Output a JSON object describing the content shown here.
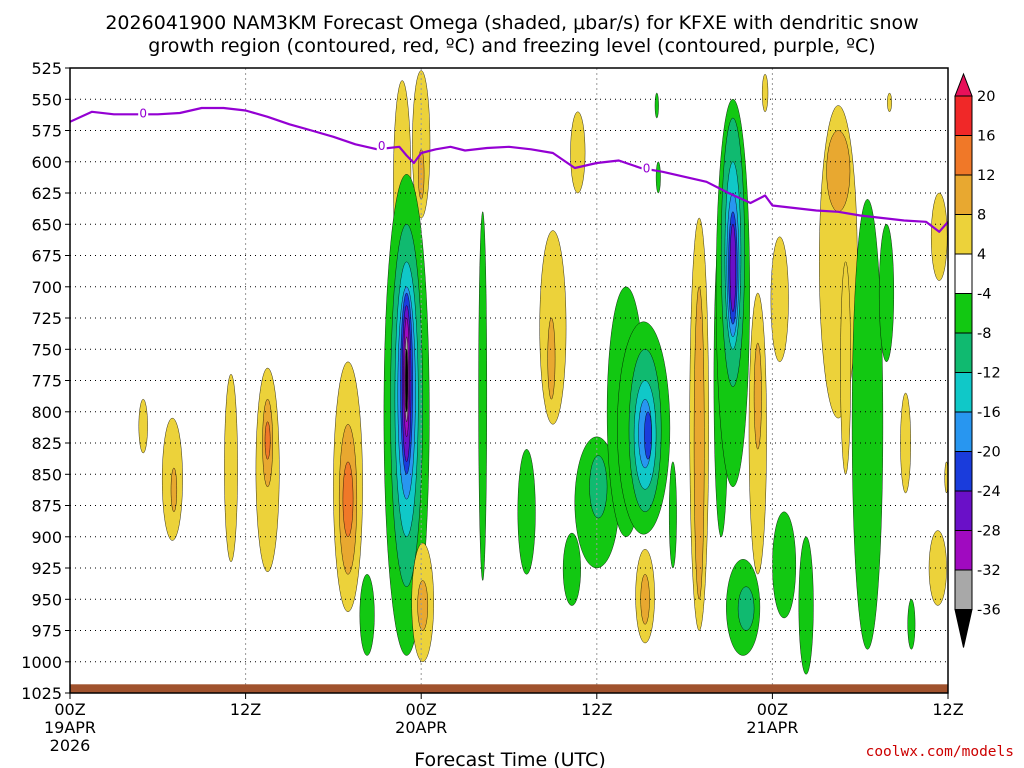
{
  "chart_data": {
    "type": "heatmap",
    "title_line1": "2026041900 NAM3KM Forecast Omega (shaded, μbar/s) for KFXE with dendritic snow",
    "title_line2": "growth region (contoured, red, ºC) and freezing level (contoured, purple, ºC)",
    "xlabel": "Forecast Time (UTC)",
    "credit": "coolwx.com/models",
    "y_ticks": [
      "525",
      "550",
      "575",
      "600",
      "625",
      "650",
      "675",
      "700",
      "725",
      "750",
      "775",
      "800",
      "825",
      "850",
      "875",
      "900",
      "925",
      "950",
      "975",
      "1000",
      "1025"
    ],
    "y_levels": [
      525,
      550,
      575,
      600,
      625,
      650,
      675,
      700,
      725,
      750,
      775,
      800,
      825,
      850,
      875,
      900,
      925,
      950,
      975,
      1000,
      1025
    ],
    "ylim": [
      1025,
      525
    ],
    "xlim_hours": [
      0,
      60
    ],
    "x_ticks": [
      {
        "hour": 0,
        "line1": "00Z",
        "line2": "19APR",
        "line3": "2026"
      },
      {
        "hour": 12,
        "line1": "12Z",
        "line2": "",
        "line3": ""
      },
      {
        "hour": 24,
        "line1": "00Z",
        "line2": "20APR",
        "line3": ""
      },
      {
        "hour": 36,
        "line1": "12Z",
        "line2": "",
        "line3": ""
      },
      {
        "hour": 48,
        "line1": "00Z",
        "line2": "21APR",
        "line3": ""
      },
      {
        "hour": 60,
        "line1": "12Z",
        "line2": "",
        "line3": ""
      }
    ],
    "colorbar_labels": [
      "20",
      "16",
      "12",
      "8",
      "4",
      "-4",
      "-8",
      "-12",
      "-16",
      "-20",
      "-24",
      "-28",
      "-32",
      "-36"
    ],
    "colorbar_colors": [
      "#e8105a",
      "#f02828",
      "#f07828",
      "#e8a830",
      "#ecd23a",
      "#ffffff",
      "#12c812",
      "#10ba70",
      "#10c8c8",
      "#2896f0",
      "#1a3cdc",
      "#6a10c8",
      "#a00ac0",
      "#a8a8a8",
      "#000000"
    ],
    "freezing_level": {
      "label": "0",
      "hours": [
        0,
        1.5,
        3,
        4.5,
        6,
        7.5,
        9,
        10.5,
        12,
        13.5,
        15,
        16.5,
        18,
        19.5,
        21,
        22.5,
        23,
        23.5,
        24,
        25,
        26,
        27,
        28.5,
        30,
        31.5,
        33,
        34.5,
        36,
        37.5,
        39,
        40.5,
        42,
        43.5,
        45,
        46.5,
        47.5,
        48,
        49.5,
        51,
        52.5,
        54,
        55.5,
        57,
        58.5,
        59.4,
        60
      ],
      "hpa": [
        568,
        560,
        562,
        562,
        562,
        561,
        557,
        557,
        559,
        564,
        570,
        575,
        580,
        586,
        590,
        588,
        595,
        601,
        593,
        590,
        588,
        591,
        589,
        588,
        590,
        593,
        605,
        601,
        599,
        605,
        608,
        612,
        616,
        625,
        633,
        627,
        635,
        637,
        639,
        640,
        643,
        645,
        647,
        648,
        656,
        648
      ]
    },
    "zero_labels": [
      {
        "hour": 5,
        "hpa": 561
      },
      {
        "hour": 21.3,
        "hpa": 587
      },
      {
        "hour": 39.4,
        "hpa": 605
      }
    ],
    "ground_level_hpa": 1018,
    "omega_features": [
      {
        "h": 5,
        "p1": 790,
        "p2": 833,
        "w": 0.3,
        "v": 6
      },
      {
        "h": 7,
        "p1": 805,
        "p2": 903,
        "w": 0.7,
        "v": 6
      },
      {
        "h": 7.1,
        "p1": 845,
        "p2": 880,
        "w": 0.2,
        "v": 8
      },
      {
        "h": 11,
        "p1": 770,
        "p2": 920,
        "w": 0.45,
        "v": 6
      },
      {
        "h": 13.5,
        "p1": 765,
        "p2": 928,
        "w": 0.8,
        "v": 6
      },
      {
        "h": 13.5,
        "p1": 790,
        "p2": 860,
        "w": 0.35,
        "v": 10
      },
      {
        "h": 13.5,
        "p1": 808,
        "p2": 838,
        "w": 0.18,
        "v": 13
      },
      {
        "h": 19,
        "p1": 760,
        "p2": 960,
        "w": 1.0,
        "v": 6
      },
      {
        "h": 19,
        "p1": 810,
        "p2": 930,
        "w": 0.6,
        "v": 10
      },
      {
        "h": 19,
        "p1": 840,
        "p2": 900,
        "w": 0.35,
        "v": 13
      },
      {
        "h": 22.7,
        "p1": 535,
        "p2": 700,
        "w": 0.6,
        "v": 6
      },
      {
        "h": 24,
        "p1": 527,
        "p2": 645,
        "w": 0.6,
        "v": 6
      },
      {
        "h": 24,
        "p1": 590,
        "p2": 630,
        "w": 0.2,
        "v": 10
      },
      {
        "h": 23,
        "p1": 610,
        "p2": 995,
        "w": 1.55,
        "v": -6
      },
      {
        "h": 23,
        "p1": 650,
        "p2": 940,
        "w": 1.1,
        "v": -10
      },
      {
        "h": 23,
        "p1": 680,
        "p2": 900,
        "w": 0.8,
        "v": -14
      },
      {
        "h": 23,
        "p1": 700,
        "p2": 870,
        "w": 0.6,
        "v": -18
      },
      {
        "h": 23,
        "p1": 705,
        "p2": 850,
        "w": 0.42,
        "v": -22
      },
      {
        "h": 23,
        "p1": 715,
        "p2": 840,
        "w": 0.3,
        "v": -26
      },
      {
        "h": 23,
        "p1": 725,
        "p2": 820,
        "w": 0.2,
        "v": -30
      },
      {
        "h": 23,
        "p1": 740,
        "p2": 808,
        "w": 0.12,
        "v": -34
      },
      {
        "h": 23,
        "p1": 750,
        "p2": 800,
        "w": 0.08,
        "v": -38
      },
      {
        "h": 20.3,
        "p1": 930,
        "p2": 995,
        "w": 0.5,
        "v": -6
      },
      {
        "h": 24.1,
        "p1": 905,
        "p2": 1000,
        "w": 0.75,
        "v": 6
      },
      {
        "h": 24.1,
        "p1": 935,
        "p2": 975,
        "w": 0.35,
        "v": 10
      },
      {
        "h": 28.2,
        "p1": 640,
        "p2": 935,
        "w": 0.28,
        "v": -6
      },
      {
        "h": 31.2,
        "p1": 830,
        "p2": 930,
        "w": 0.6,
        "v": -6
      },
      {
        "h": 33,
        "p1": 655,
        "p2": 810,
        "w": 0.9,
        "v": 6
      },
      {
        "h": 32.9,
        "p1": 725,
        "p2": 790,
        "w": 0.25,
        "v": 9
      },
      {
        "h": 34.3,
        "p1": 897,
        "p2": 955,
        "w": 0.6,
        "v": -6
      },
      {
        "h": 34.7,
        "p1": 560,
        "p2": 625,
        "w": 0.5,
        "v": 6
      },
      {
        "h": 36,
        "p1": 820,
        "p2": 925,
        "w": 1.5,
        "v": -6
      },
      {
        "h": 36.1,
        "p1": 835,
        "p2": 885,
        "w": 0.6,
        "v": -9
      },
      {
        "h": 38,
        "p1": 700,
        "p2": 900,
        "w": 1.3,
        "v": -6
      },
      {
        "h": 39.2,
        "p1": 728,
        "p2": 898,
        "w": 1.8,
        "v": -6
      },
      {
        "h": 39.3,
        "p1": 750,
        "p2": 880,
        "w": 1.1,
        "v": -9
      },
      {
        "h": 39.3,
        "p1": 775,
        "p2": 862,
        "w": 0.75,
        "v": -13
      },
      {
        "h": 39.3,
        "p1": 790,
        "p2": 845,
        "w": 0.45,
        "v": -17
      },
      {
        "h": 39.5,
        "p1": 800,
        "p2": 838,
        "w": 0.25,
        "v": -21
      },
      {
        "h": 39.3,
        "p1": 910,
        "p2": 985,
        "w": 0.65,
        "v": 6
      },
      {
        "h": 39.3,
        "p1": 930,
        "p2": 970,
        "w": 0.3,
        "v": 10
      },
      {
        "h": 40.2,
        "p1": 600,
        "p2": 625,
        "w": 0.15,
        "v": -6
      },
      {
        "h": 40.1,
        "p1": 545,
        "p2": 565,
        "w": 0.12,
        "v": -6
      },
      {
        "h": 41.2,
        "p1": 840,
        "p2": 925,
        "w": 0.25,
        "v": -6
      },
      {
        "h": 43,
        "p1": 645,
        "p2": 975,
        "w": 0.65,
        "v": 6
      },
      {
        "h": 43,
        "p1": 700,
        "p2": 950,
        "w": 0.35,
        "v": 10
      },
      {
        "h": 44.5,
        "p1": 650,
        "p2": 900,
        "w": 0.5,
        "v": -6
      },
      {
        "h": 45.3,
        "p1": 550,
        "p2": 860,
        "w": 1.15,
        "v": -6
      },
      {
        "h": 45.3,
        "p1": 565,
        "p2": 780,
        "w": 0.8,
        "v": -10
      },
      {
        "h": 45.3,
        "p1": 600,
        "p2": 750,
        "w": 0.55,
        "v": -14
      },
      {
        "h": 45.3,
        "p1": 625,
        "p2": 740,
        "w": 0.42,
        "v": -18
      },
      {
        "h": 45.3,
        "p1": 640,
        "p2": 730,
        "w": 0.3,
        "v": -22
      },
      {
        "h": 45.3,
        "p1": 650,
        "p2": 720,
        "w": 0.2,
        "v": -26
      },
      {
        "h": 46,
        "p1": 918,
        "p2": 995,
        "w": 1.15,
        "v": -6
      },
      {
        "h": 46.2,
        "p1": 940,
        "p2": 975,
        "w": 0.55,
        "v": -10
      },
      {
        "h": 47,
        "p1": 705,
        "p2": 930,
        "w": 0.6,
        "v": 6
      },
      {
        "h": 47,
        "p1": 745,
        "p2": 830,
        "w": 0.25,
        "v": 10
      },
      {
        "h": 47.5,
        "p1": 530,
        "p2": 560,
        "w": 0.2,
        "v": 6
      },
      {
        "h": 48.8,
        "p1": 880,
        "p2": 965,
        "w": 0.8,
        "v": -6
      },
      {
        "h": 50.3,
        "p1": 900,
        "p2": 1010,
        "w": 0.5,
        "v": -6
      },
      {
        "h": 48.5,
        "p1": 660,
        "p2": 760,
        "w": 0.6,
        "v": 6
      },
      {
        "h": 52.5,
        "p1": 555,
        "p2": 805,
        "w": 1.3,
        "v": 6
      },
      {
        "h": 52.5,
        "p1": 575,
        "p2": 640,
        "w": 0.8,
        "v": 10
      },
      {
        "h": 53,
        "p1": 680,
        "p2": 850,
        "w": 0.35,
        "v": 6
      },
      {
        "h": 54.5,
        "p1": 630,
        "p2": 990,
        "w": 1.05,
        "v": -6
      },
      {
        "h": 55.8,
        "p1": 650,
        "p2": 760,
        "w": 0.5,
        "v": -6
      },
      {
        "h": 56,
        "p1": 545,
        "p2": 560,
        "w": 0.15,
        "v": 6
      },
      {
        "h": 57.1,
        "p1": 785,
        "p2": 865,
        "w": 0.35,
        "v": 6
      },
      {
        "h": 57.5,
        "p1": 950,
        "p2": 990,
        "w": 0.25,
        "v": -6
      },
      {
        "h": 59.4,
        "p1": 625,
        "p2": 695,
        "w": 0.55,
        "v": 6
      },
      {
        "h": 59.3,
        "p1": 895,
        "p2": 955,
        "w": 0.6,
        "v": 6
      },
      {
        "h": 59.9,
        "p1": 840,
        "p2": 865,
        "w": 0.12,
        "v": 6
      }
    ]
  }
}
